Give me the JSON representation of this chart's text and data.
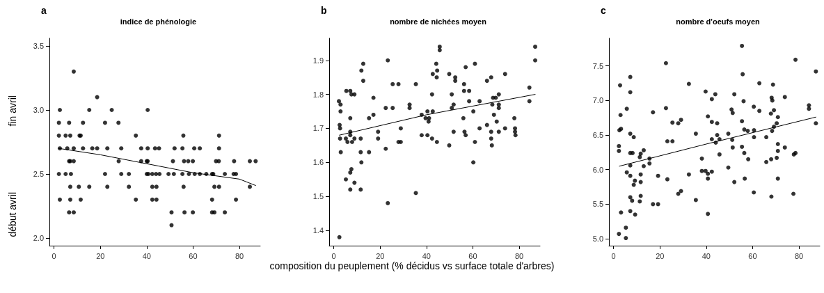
{
  "chart_data": [
    {
      "type": "scatter",
      "title": "a",
      "subtitle": "indice de phénologie",
      "annotations": [
        "fin avril",
        "début avril"
      ],
      "xlim": [
        -2,
        89
      ],
      "xticks": [
        0,
        20,
        40,
        60,
        80
      ],
      "ylim": [
        1.94,
        3.56
      ],
      "yticks": [
        {
          "value": 2,
          "label": "2.0"
        },
        2.5,
        {
          "value": 3,
          "label": "3.0"
        },
        3.5
      ],
      "grid": false,
      "marker": "circle",
      "series": [
        {
          "color": "#000000",
          "x": [
            8.5,
            18.6,
            2.5,
            15.2,
            24.9,
            40.4,
            2.1,
            6.5,
            12.5,
            22,
            27.8,
            2.1,
            5,
            7,
            11,
            11.5,
            35.3,
            55.8,
            71.2,
            2.5,
            5.7,
            8.5,
            12.5,
            16.5,
            18.6,
            23,
            29,
            37.6,
            40.4,
            43.6,
            45.3,
            52,
            55.4,
            60.5,
            62.9,
            71.2,
            6.5,
            7,
            8.5,
            27.9,
            37.6,
            40,
            40.4,
            51.3,
            56.1,
            57.9,
            59.9,
            69.9,
            71.1,
            77.7,
            84.5,
            87,
            2.1,
            5,
            7.3,
            22,
            29,
            32.3,
            40,
            40.7,
            42.4,
            44,
            45.5,
            49.4,
            51.7,
            55.4,
            58.2,
            60.7,
            62.9,
            65.7,
            68.2,
            68.7,
            73.7,
            77.5,
            78.5,
            7,
            10.7,
            15.2,
            23,
            32.3,
            42.4,
            44.2,
            55.9,
            69.2,
            71.2,
            84.5,
            2.5,
            7,
            11.5,
            35.3,
            42.4,
            44.2,
            68.2,
            78.5,
            6.5,
            8.5,
            50.7,
            56.3,
            59.9,
            68.2,
            69.2,
            73.7,
            50.7
          ],
          "values": [
            3.3,
            3.1,
            3.0,
            3.0,
            3.0,
            3.0,
            2.9,
            2.9,
            2.9,
            2.9,
            2.9,
            2.8,
            2.8,
            2.8,
            2.8,
            2.8,
            2.8,
            2.8,
            2.8,
            2.7,
            2.7,
            2.7,
            2.7,
            2.7,
            2.7,
            2.7,
            2.7,
            2.7,
            2.7,
            2.7,
            2.7,
            2.7,
            2.7,
            2.7,
            2.7,
            2.7,
            2.6,
            2.6,
            2.6,
            2.6,
            2.6,
            2.6,
            2.6,
            2.6,
            2.6,
            2.6,
            2.6,
            2.6,
            2.6,
            2.6,
            2.6,
            2.6,
            2.5,
            2.5,
            2.5,
            2.5,
            2.5,
            2.5,
            2.5,
            2.5,
            2.5,
            2.5,
            2.5,
            2.5,
            2.5,
            2.5,
            2.5,
            2.5,
            2.5,
            2.5,
            2.5,
            2.5,
            2.5,
            2.5,
            2.5,
            2.4,
            2.4,
            2.4,
            2.4,
            2.4,
            2.4,
            2.4,
            2.4,
            2.4,
            2.4,
            2.4,
            2.3,
            2.3,
            2.3,
            2.3,
            2.3,
            2.3,
            2.3,
            2.3,
            2.2,
            2.2,
            2.2,
            2.2,
            2.2,
            2.2,
            2.2,
            2.2,
            2.1
          ]
        },
        {
          "type": "line",
          "color": "#000000",
          "marker": "none",
          "x": [
            2,
            20,
            40,
            60,
            80,
            87
          ],
          "values": [
            2.7,
            2.65,
            2.58,
            2.51,
            2.46,
            2.41
          ]
        }
      ]
    },
    {
      "type": "scatter",
      "title": "b",
      "subtitle": "nombre de nichées moyen",
      "xlabel": "composition du peuplement (% décidus vs surface totale d'arbres)",
      "xlim": [
        -2,
        89
      ],
      "xticks": [
        0,
        20,
        40,
        60,
        80
      ],
      "ylim": [
        1.355,
        1.965
      ],
      "yticks": [
        1.4,
        1.5,
        1.6,
        1.7,
        1.8,
        1.9
      ],
      "grid": false,
      "marker": "circle",
      "series": [
        {
          "color": "#000000",
          "x": [
            2.4,
            2.2,
            2.9,
            2.9,
            2.5,
            2.7,
            2.7,
            3,
            5.4,
            7.1,
            7.6,
            8.9,
            7.1,
            7.1,
            7.1,
            5.2,
            5.9,
            7.9,
            8.9,
            5.2,
            7.1,
            7.6,
            8.9,
            7.1,
            11.6,
            11.9,
            11.6,
            11.6,
            11.9,
            12.7,
            12.7,
            15.2,
            15.2,
            17.1,
            17.1,
            19.1,
            19.1,
            22.4,
            22.4,
            23.3,
            23.3,
            25.4,
            25.4,
            27.9,
            27.9,
            28.9,
            28.9,
            32.7,
            32.7,
            35.4,
            35.4,
            37.9,
            37.9,
            39.6,
            40.4,
            40.4,
            41.1,
            40.9,
            42.4,
            42.4,
            42.7,
            42.7,
            44.2,
            44.6,
            44.4,
            44.5,
            45.7,
            45.7,
            49.8,
            49.8,
            50.9,
            50.9,
            51.7,
            51.7,
            52.4,
            52.4,
            55.9,
            56.2,
            56.2,
            56.4,
            56.9,
            56.9,
            58.4,
            58.4,
            60.2,
            60.2,
            60.9,
            60.9,
            62.9,
            62.9,
            66.1,
            66.1,
            67.9,
            67.9,
            67.9,
            68.2,
            68.4,
            68.7,
            69.1,
            69.9,
            70.3,
            71.2,
            71.2,
            71.2,
            71.2,
            73.9,
            73.9,
            77.9,
            78.2,
            78.2,
            78.4,
            84.4,
            84.4,
            86.9,
            86.9
          ],
          "values": [
            1.38,
            1.78,
            1.77,
            1.75,
            1.71,
            1.7,
            1.67,
            1.63,
            1.81,
            1.81,
            1.8,
            1.8,
            1.73,
            1.69,
            1.68,
            1.67,
            1.66,
            1.66,
            1.67,
            1.55,
            1.57,
            1.58,
            1.54,
            1.52,
            1.52,
            1.6,
            1.63,
            1.67,
            1.87,
            1.89,
            1.84,
            1.73,
            1.63,
            1.74,
            1.79,
            1.69,
            1.67,
            1.64,
            1.76,
            1.9,
            1.48,
            1.83,
            1.76,
            1.83,
            1.66,
            1.66,
            1.7,
            1.77,
            1.76,
            1.83,
            1.51,
            1.74,
            1.68,
            1.73,
            1.75,
            1.68,
            1.73,
            1.72,
            1.8,
            1.67,
            1.75,
            1.86,
            1.89,
            1.87,
            1.85,
            1.66,
            1.94,
            1.93,
            1.86,
            1.65,
            1.8,
            1.76,
            1.77,
            1.69,
            1.85,
            1.84,
            1.73,
            1.83,
            1.81,
            1.69,
            1.68,
            1.88,
            1.81,
            1.78,
            1.75,
            1.6,
            1.89,
            1.66,
            1.78,
            1.7,
            1.84,
            1.71,
            1.85,
            1.69,
            1.67,
            1.65,
            1.77,
            1.79,
            1.74,
            1.79,
            1.72,
            1.8,
            1.77,
            1.76,
            1.69,
            1.86,
            1.7,
            1.73,
            1.7,
            1.69,
            1.68,
            1.82,
            1.78,
            1.94,
            1.9
          ]
        },
        {
          "type": "line",
          "color": "#000000",
          "marker": "none",
          "x": [
            2.4,
            40,
            86.9
          ],
          "values": [
            1.68,
            1.74,
            1.8
          ]
        }
      ]
    },
    {
      "type": "scatter",
      "title": "c",
      "subtitle": "nombre d'oeufs moyen",
      "xlim": [
        -2,
        89
      ],
      "xticks": [
        0,
        20,
        40,
        60,
        80
      ],
      "ylim": [
        4.9,
        7.9
      ],
      "yticks": [
        {
          "value": 5,
          "label": "5.0"
        },
        5.5,
        {
          "value": 6,
          "label": "6.0"
        },
        6.5,
        {
          "value": 7,
          "label": "7.0"
        },
        7.5
      ],
      "grid": false,
      "marker": "circle",
      "series": [
        {
          "color": "#000000",
          "x": [
            2.3,
            3.2,
            2.3,
            2.3,
            2.5,
            3.2,
            3,
            2.8,
            5.3,
            5.3,
            5.7,
            5.7,
            7.2,
            7.2,
            7.2,
            7.2,
            7.2,
            7.2,
            7.2,
            7.2,
            8.2,
            8.7,
            8,
            8.7,
            9.2,
            9.3,
            11.3,
            11.7,
            11.7,
            11.7,
            11.7,
            11.3,
            13,
            13,
            15.5,
            15.5,
            17,
            17,
            19.2,
            19.2,
            22.6,
            22.6,
            23.2,
            23.2,
            25.4,
            25.4,
            27.9,
            27.9,
            29.1,
            29.1,
            32.5,
            32.5,
            35.5,
            35.5,
            38.1,
            38.1,
            39.7,
            39.7,
            40.7,
            40.7,
            40.7,
            40.7,
            42.4,
            42.4,
            42.4,
            42.4,
            43.9,
            44.1,
            44.7,
            44.7,
            45.7,
            45.7,
            49.5,
            49.5,
            50.9,
            51.2,
            51.4,
            51.4,
            52.1,
            52.1,
            55.4,
            55.7,
            55.4,
            55.4,
            56.1,
            56.4,
            56.4,
            56.6,
            57.9,
            58.1,
            60.5,
            60.5,
            60.6,
            60.6,
            62.9,
            62.9,
            65.9,
            65.9,
            67.9,
            68.2,
            68.5,
            68.8,
            68,
            68.1,
            68.4,
            69.2,
            69.2,
            70.4,
            70.4,
            70.9,
            70.9,
            70.9,
            70.9,
            73.9,
            73.9,
            77.6,
            77.8,
            78.5,
            78.5,
            84.3,
            84.3,
            87.3,
            87.3
          ],
          "values": [
            5.07,
            5.38,
            6.27,
            6.34,
            6.57,
            6.59,
            6.79,
            7.22,
            5.16,
            5.01,
            5.96,
            6.88,
            7.34,
            7.12,
            6.52,
            6.24,
            6.06,
            5.91,
            5.6,
            5.4,
            6.24,
            6.47,
            5.55,
            5.78,
            5.84,
            5.35,
            6.18,
            6.23,
            5.93,
            5.82,
            5.62,
            5.54,
            6.28,
            6.05,
            6.16,
            6.09,
            6.83,
            5.5,
            5.5,
            5.91,
            6.89,
            7.54,
            6.41,
            5.86,
            6.41,
            6.68,
            6.67,
            5.65,
            6.72,
            5.69,
            7.24,
            5.93,
            6.52,
            5.56,
            6.16,
            5.98,
            7.13,
            5.98,
            5.94,
            5.87,
            6.77,
            5.36,
            7.02,
            6.69,
            6.44,
            5.97,
            7.09,
            6.39,
            6.67,
            6.5,
            6.44,
            6.22,
            6.52,
            6.03,
            6.87,
            6.43,
            6.82,
            6.32,
            7.09,
            5.82,
            7.79,
            7.38,
            6.7,
            6.33,
            6.99,
            6.58,
            6.24,
            5.87,
            6.56,
            6.15,
            6.91,
            5.67,
            6.57,
            6.47,
            7.25,
            6.85,
            6.47,
            6.11,
            6.81,
            7.04,
            7.0,
            7.23,
            6.15,
            5.61,
            6.56,
            6.62,
            6.86,
            6.67,
            6.17,
            6.76,
            6.37,
            6.27,
            5.87,
            7.05,
            6.32,
            5.65,
            6.22,
            6.24,
            7.59,
            6.93,
            6.88,
            7.42,
            6.67
          ]
        },
        {
          "type": "line",
          "color": "#000000",
          "marker": "none",
          "x": [
            2.5,
            40,
            87.3
          ],
          "values": [
            6.05,
            6.37,
            6.76
          ]
        }
      ]
    }
  ]
}
